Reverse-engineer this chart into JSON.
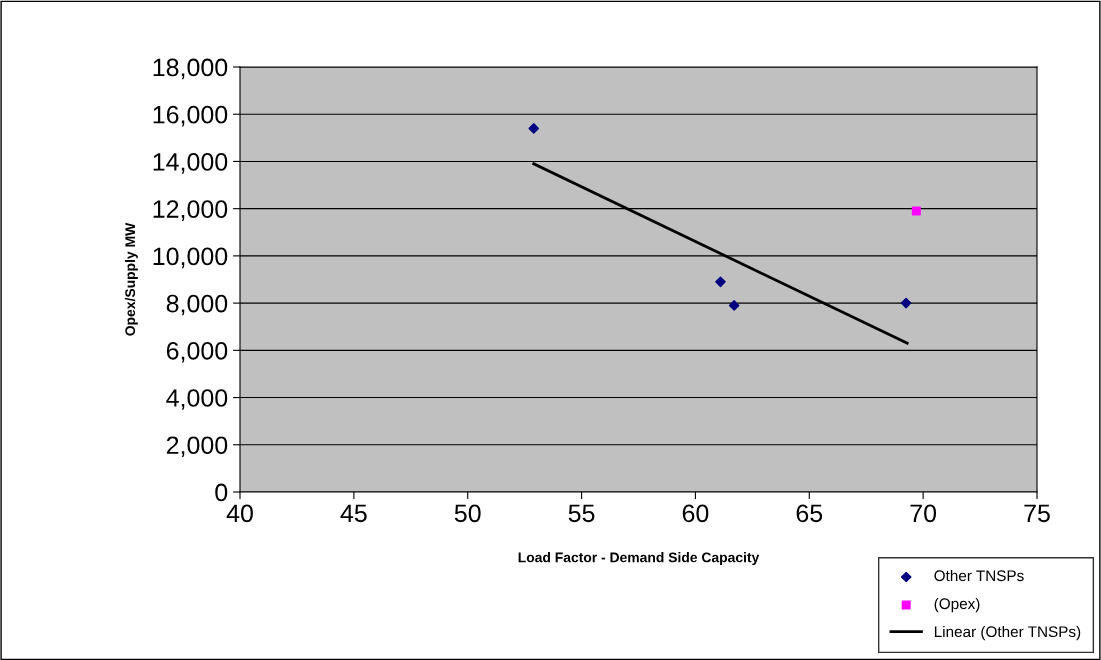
{
  "chart_data": {
    "type": "scatter",
    "xlabel": "Load Factor - Demand Side Capacity",
    "ylabel": "Opex/Supply MW",
    "xlim": [
      40,
      75
    ],
    "xticks": [
      40,
      45,
      50,
      55,
      60,
      65,
      70,
      75
    ],
    "ylim": [
      0,
      18000
    ],
    "yticks": [
      {
        "value": 0,
        "label": "0"
      },
      {
        "value": 2000,
        "label": "2,000"
      },
      {
        "value": 4000,
        "label": "4,000"
      },
      {
        "value": 6000,
        "label": "6,000"
      },
      {
        "value": 8000,
        "label": "8,000"
      },
      {
        "value": 10000,
        "label": "10,000"
      },
      {
        "value": 12000,
        "label": "12,000"
      },
      {
        "value": 14000,
        "label": "14,000"
      },
      {
        "value": 16000,
        "label": "16,000"
      },
      {
        "value": 18000,
        "label": "18,000"
      }
    ],
    "grid": "y",
    "legend": "bottom right",
    "series": [
      {
        "name": "Other TNSPs",
        "type": "scatter",
        "marker": "diamond",
        "color": "#000080",
        "x": [
          52.9,
          61.1,
          61.7,
          69.25
        ],
        "values": [
          15400,
          8900,
          7900,
          8000
        ]
      },
      {
        "name": "(Opex)",
        "type": "scatter",
        "marker": "square",
        "color": "#ff00ff",
        "x": [
          69.7
        ],
        "values": [
          11900
        ]
      },
      {
        "name": "Linear (Other TNSPs)",
        "type": "line",
        "marker": "none",
        "line_style": "solid",
        "color": "#000000",
        "x": [
          52.9,
          69.3
        ],
        "values": [
          13900,
          6300
        ]
      }
    ]
  }
}
